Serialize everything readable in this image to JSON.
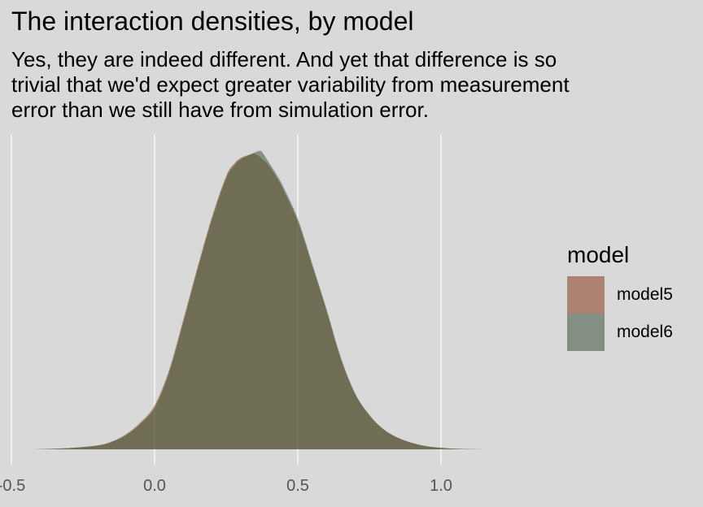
{
  "chart_data": {
    "type": "area",
    "title": "The interaction densities, by model",
    "subtitle_lines": [
      "Yes, they are indeed different. And yet that difference is so",
      "trivial that we'd expect greater variability from measurement",
      "error than we still have from simulation error."
    ],
    "xlabel": "",
    "ylabel": "",
    "xlim": [
      -0.5,
      1.25
    ],
    "ylim": [
      0,
      1.0
    ],
    "x_ticks": [
      -0.5,
      0.0,
      0.5,
      1.0
    ],
    "x_tick_labels": [
      "-0.5",
      "0.0",
      "0.5",
      "1.0"
    ],
    "grid": true,
    "legend": {
      "title": "model",
      "position": "right"
    },
    "series": [
      {
        "name": "model5",
        "color": "#8b3b1e",
        "x": [
          -0.42,
          -0.3,
          -0.2,
          -0.15,
          -0.1,
          -0.05,
          0.0,
          0.05,
          0.1,
          0.15,
          0.2,
          0.25,
          0.28,
          0.3,
          0.32,
          0.35,
          0.38,
          0.4,
          0.43,
          0.45,
          0.5,
          0.55,
          0.6,
          0.65,
          0.7,
          0.75,
          0.8,
          0.85,
          0.9,
          0.95,
          1.0,
          1.05,
          1.15,
          1.25
        ],
        "values": [
          0.0,
          0.004,
          0.013,
          0.026,
          0.05,
          0.089,
          0.146,
          0.262,
          0.43,
          0.605,
          0.77,
          0.907,
          0.95,
          0.966,
          0.974,
          0.98,
          0.96,
          0.94,
          0.895,
          0.86,
          0.755,
          0.61,
          0.46,
          0.3,
          0.184,
          0.113,
          0.066,
          0.038,
          0.021,
          0.01,
          0.005,
          0.002,
          0.0,
          0.0
        ]
      },
      {
        "name": "model6",
        "color": "#2e4f30",
        "x": [
          -0.42,
          -0.3,
          -0.2,
          -0.15,
          -0.1,
          -0.05,
          0.0,
          0.05,
          0.1,
          0.15,
          0.2,
          0.25,
          0.28,
          0.3,
          0.32,
          0.35,
          0.37,
          0.38,
          0.4,
          0.43,
          0.45,
          0.5,
          0.55,
          0.6,
          0.65,
          0.7,
          0.75,
          0.8,
          0.85,
          0.9,
          0.95,
          1.0,
          1.05,
          1.15,
          1.25
        ],
        "values": [
          0.0,
          0.004,
          0.012,
          0.024,
          0.047,
          0.084,
          0.138,
          0.252,
          0.42,
          0.596,
          0.762,
          0.899,
          0.944,
          0.962,
          0.972,
          0.985,
          0.99,
          0.98,
          0.95,
          0.905,
          0.87,
          0.765,
          0.617,
          0.466,
          0.306,
          0.186,
          0.114,
          0.066,
          0.038,
          0.021,
          0.01,
          0.005,
          0.002,
          0.0,
          0.0
        ]
      }
    ],
    "legend_swatch_colors": [
      "#ad8270",
      "#838f82"
    ]
  }
}
